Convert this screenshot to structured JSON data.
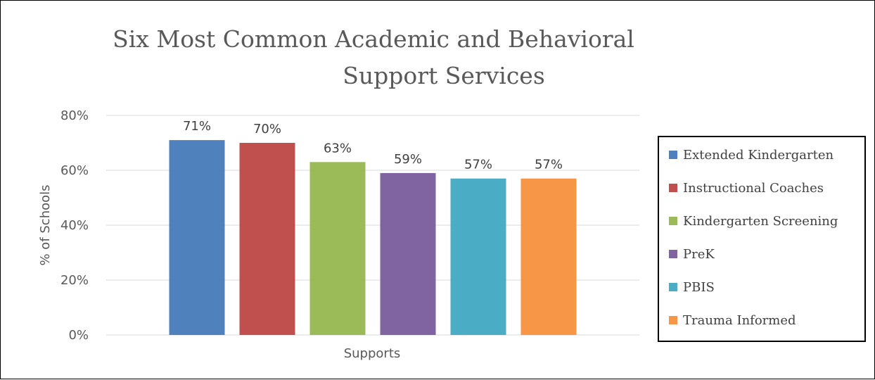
{
  "chart_data": {
    "type": "bar",
    "title_lines": [
      "Six Most Common Academic and Behavioral",
      "Support Services"
    ],
    "xlabel": "Supports",
    "ylabel": "% of Schools",
    "ylim": [
      0,
      80
    ],
    "yticks": [
      0,
      20,
      40,
      60,
      80
    ],
    "ytick_labels": [
      "0%",
      "20%",
      "40%",
      "60%",
      "80%"
    ],
    "grid": true,
    "legend_position": "right",
    "series": [
      {
        "name": "Extended Kindergarten",
        "value": 71,
        "label": "71%",
        "color": "#4f81bd"
      },
      {
        "name": "Instructional Coaches",
        "value": 70,
        "label": "70%",
        "color": "#c0504d"
      },
      {
        "name": "Kindergarten Screening",
        "value": 63,
        "label": "63%",
        "color": "#9bbb59"
      },
      {
        "name": "PreK",
        "value": 59,
        "label": "59%",
        "color": "#8064a2"
      },
      {
        "name": "PBIS",
        "value": 57,
        "label": "57%",
        "color": "#4bacc6"
      },
      {
        "name": "Trauma Informed",
        "value": 57,
        "label": "57%",
        "color": "#f79646"
      }
    ]
  }
}
